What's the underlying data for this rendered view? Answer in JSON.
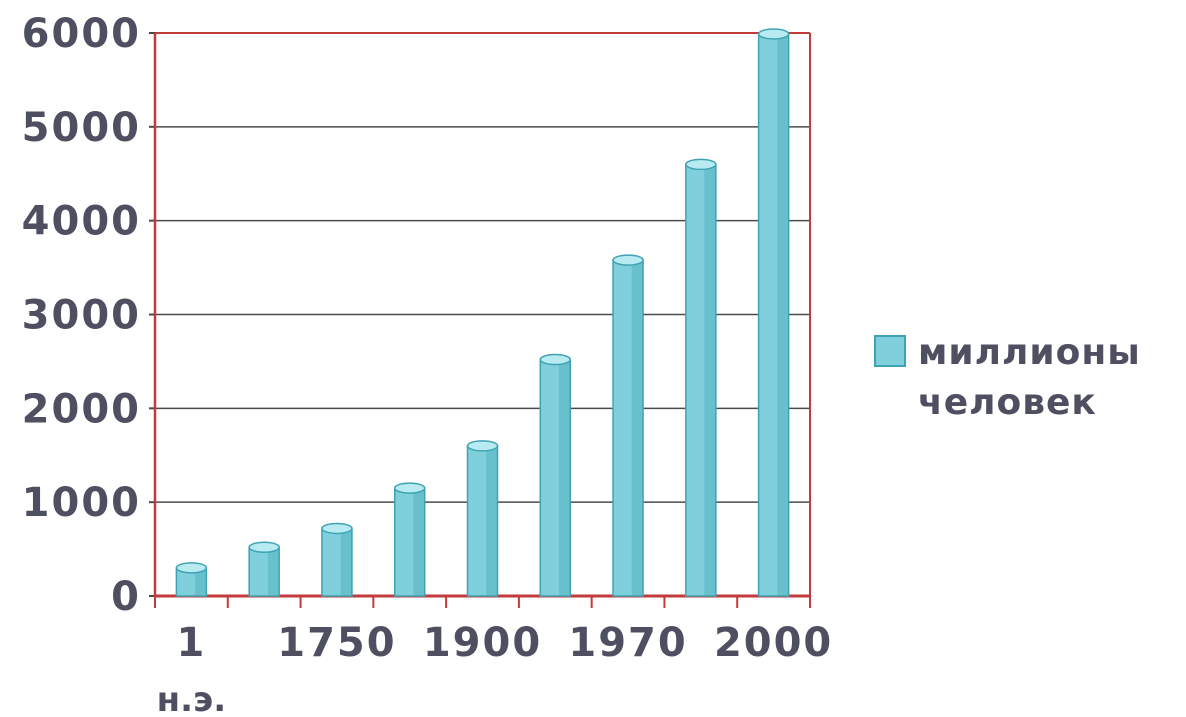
{
  "chart_data": {
    "type": "bar",
    "categories": [
      "1\nн.э.",
      "",
      "1750",
      "",
      "1900",
      "",
      "1970",
      "",
      "2000"
    ],
    "values": [
      300,
      520,
      720,
      1150,
      1600,
      2520,
      3580,
      4600,
      5990
    ],
    "series": [
      {
        "name": "миллионы человек",
        "values": [
          300,
          520,
          720,
          1150,
          1600,
          2520,
          3580,
          4600,
          5990
        ]
      }
    ],
    "title": "",
    "xlabel": "",
    "ylabel": "",
    "ylim": [
      0,
      6000
    ],
    "yticks": [
      "0",
      "1000",
      "2000",
      "3000",
      "4000",
      "5000",
      "6000"
    ],
    "x_tick_labels": [
      {
        "main": "1",
        "sub": "н.э."
      },
      {
        "main": "1750",
        "sub": ""
      },
      {
        "main": "1900",
        "sub": ""
      },
      {
        "main": "1970",
        "sub": ""
      },
      {
        "main": "2000",
        "sub": ""
      }
    ],
    "grid": true,
    "legend": {
      "placement": "right",
      "lines": [
        "миллионы",
        "человек"
      ]
    },
    "colors": {
      "bar": "#7fd0dc",
      "bar_dark": "#3fa3b3",
      "bar_top": "#b7eaf1",
      "frame": "#c23a3a",
      "grid": "#4a4a4a",
      "text": "#4f4f62"
    }
  }
}
